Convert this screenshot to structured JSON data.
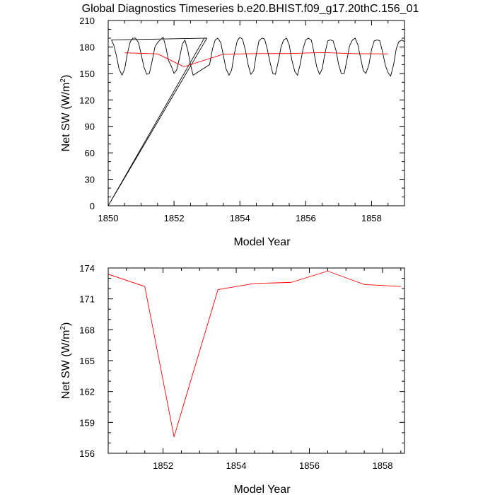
{
  "title": "Global Diagnostics Timeseries b.e20.BHIST.f09_g17.20thC.156_01",
  "colors": {
    "monthly": "#000000",
    "annual": "#ff0000",
    "axis": "#000000"
  },
  "chart_data": [
    {
      "type": "line",
      "ylabel": "Net SW (W/m",
      "ylabel_sup": "2",
      "ylabel_close": ")",
      "xlabel": "Model Year",
      "xlim": [
        1850,
        1859
      ],
      "ylim": [
        0,
        210
      ],
      "x_ticks": [
        1850,
        1852,
        1854,
        1856,
        1858
      ],
      "x_minor_ticks": [
        1850.5,
        1851,
        1851.5,
        1852.5,
        1853,
        1853.5,
        1854.5,
        1855,
        1855.5,
        1856.5,
        1857,
        1857.5,
        1858.5
      ],
      "y_ticks": [
        0,
        30,
        60,
        90,
        120,
        150,
        180,
        210
      ],
      "y_minor_ticks": [
        10,
        20,
        40,
        50,
        70,
        80,
        100,
        110,
        130,
        140,
        160,
        170,
        190,
        200
      ],
      "series": [
        {
          "color": "#000000",
          "x": [
            1850.0,
            1852.92,
            1850.0,
            1853.0,
            1850.1,
            1850.17,
            1850.25,
            1850.33,
            1850.42,
            1850.5,
            1850.58,
            1850.67,
            1850.75,
            1850.83,
            1850.92,
            1851.0,
            1851.08,
            1851.17,
            1851.25,
            1851.33,
            1851.42,
            1851.5,
            1851.58,
            1851.67,
            1851.75,
            1851.83,
            1851.92,
            1852.0,
            1852.08,
            1852.17,
            1852.25,
            1852.33,
            1852.42,
            1852.5,
            1852.58,
            1853.08,
            1853.17,
            1853.25,
            1853.33,
            1853.42,
            1853.5,
            1853.58,
            1853.67,
            1853.75,
            1853.83,
            1853.92,
            1854.0,
            1854.08,
            1854.17,
            1854.25,
            1854.33,
            1854.42,
            1854.5,
            1854.58,
            1854.67,
            1854.75,
            1854.83,
            1854.92,
            1855.0,
            1855.08,
            1855.17,
            1855.25,
            1855.33,
            1855.42,
            1855.5,
            1855.58,
            1855.67,
            1855.75,
            1855.83,
            1855.92,
            1856.0,
            1856.08,
            1856.17,
            1856.25,
            1856.33,
            1856.42,
            1856.5,
            1856.58,
            1856.67,
            1856.75,
            1856.83,
            1856.92,
            1857.0,
            1857.08,
            1857.17,
            1857.25,
            1857.33,
            1857.42,
            1857.5,
            1857.58,
            1857.67,
            1857.75,
            1857.83,
            1857.92,
            1858.0,
            1858.08,
            1858.17,
            1858.25,
            1858.33,
            1858.42,
            1858.5,
            1858.58,
            1858.67,
            1858.75,
            1858.83,
            1858.92,
            1859.0
          ],
          "y": [
            0,
            190,
            0,
            190,
            188,
            182,
            170,
            155,
            148,
            155,
            172,
            186,
            190,
            190,
            185,
            172,
            158,
            149,
            150,
            163,
            180,
            185,
            188,
            191,
            180,
            165,
            158,
            150,
            154,
            168,
            183,
            188,
            176,
            160,
            148,
            160,
            178,
            188,
            190,
            185,
            170,
            155,
            148,
            154,
            172,
            187,
            191,
            189,
            176,
            160,
            149,
            153,
            172,
            187,
            190,
            189,
            178,
            162,
            150,
            149,
            164,
            180,
            188,
            190,
            182,
            165,
            152,
            148,
            160,
            178,
            188,
            190,
            188,
            174,
            158,
            149,
            155,
            172,
            187,
            188,
            187,
            176,
            160,
            150,
            150,
            165,
            181,
            188,
            190,
            183,
            167,
            153,
            150,
            160,
            177,
            187,
            188,
            187,
            175,
            159,
            151,
            147,
            160,
            178,
            186,
            188,
            186
          ]
        },
        {
          "color": "#ff0000",
          "x": [
            1850.5,
            1851.5,
            1852.3,
            1853.5,
            1854.5,
            1855.5,
            1856.5,
            1857.5,
            1858.5
          ],
          "y": [
            173.4,
            172.2,
            157.6,
            171.9,
            172.5,
            172.6,
            173.7,
            172.4,
            172.2
          ]
        }
      ]
    },
    {
      "type": "line",
      "ylabel": "Net SW (W/m",
      "ylabel_sup": "2",
      "ylabel_close": ")",
      "xlabel": "Model Year",
      "xlim": [
        1850.5,
        1858.6
      ],
      "ylim": [
        156,
        174
      ],
      "x_ticks": [
        1852,
        1854,
        1856,
        1858
      ],
      "x_minor_ticks": [
        1851,
        1851.5,
        1852.5,
        1853,
        1853.5,
        1854.5,
        1855,
        1855.5,
        1856.5,
        1857,
        1857.5,
        1858.5
      ],
      "y_ticks": [
        156,
        159,
        162,
        165,
        168,
        171,
        174
      ],
      "y_minor_ticks": [
        157,
        158,
        160,
        161,
        163,
        164,
        166,
        167,
        169,
        170,
        172,
        173
      ],
      "series": [
        {
          "color": "#ff0000",
          "x": [
            1850.5,
            1851.5,
            1852.3,
            1853.5,
            1854.5,
            1855.5,
            1856.5,
            1857.5,
            1858.5
          ],
          "y": [
            173.4,
            172.2,
            157.6,
            171.9,
            172.5,
            172.6,
            173.7,
            172.4,
            172.2
          ]
        }
      ]
    }
  ]
}
